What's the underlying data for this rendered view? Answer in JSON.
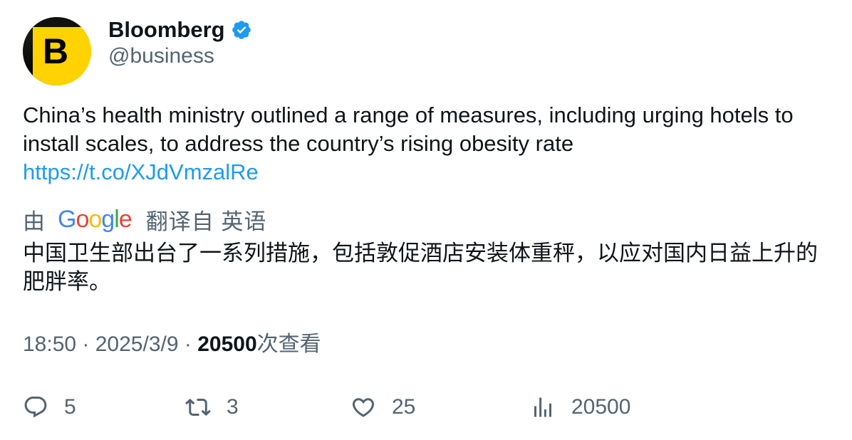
{
  "author": {
    "display_name": "Bloomberg",
    "handle": "@business",
    "avatar_letter": "B",
    "verified": true
  },
  "tweet": {
    "text": "China’s health ministry outlined a range of measures, including urging hotels to install scales, to address the country’s rising obesity rate",
    "link": "https://t.co/XJdVmzalRe"
  },
  "translation": {
    "by_label": "由",
    "provider": "Google",
    "action_label": "翻译自 英语",
    "text": "中国卫生部出台了一系列措施，包括敦促酒店安装体重秤，以应对国内日益上升的肥胖率。"
  },
  "meta": {
    "time": "18:50",
    "separator": "·",
    "date": "2025/3/9",
    "views_count": "20500",
    "views_label": "次查看"
  },
  "actions": {
    "reply_count": "5",
    "retweet_count": "3",
    "like_count": "25",
    "views_count": "20500"
  },
  "colors": {
    "text_primary": "#0f1419",
    "text_secondary": "#536471",
    "link": "#1d9bf0",
    "verified_badge": "#1d9bf0",
    "avatar_yellow": "#ffd200"
  }
}
